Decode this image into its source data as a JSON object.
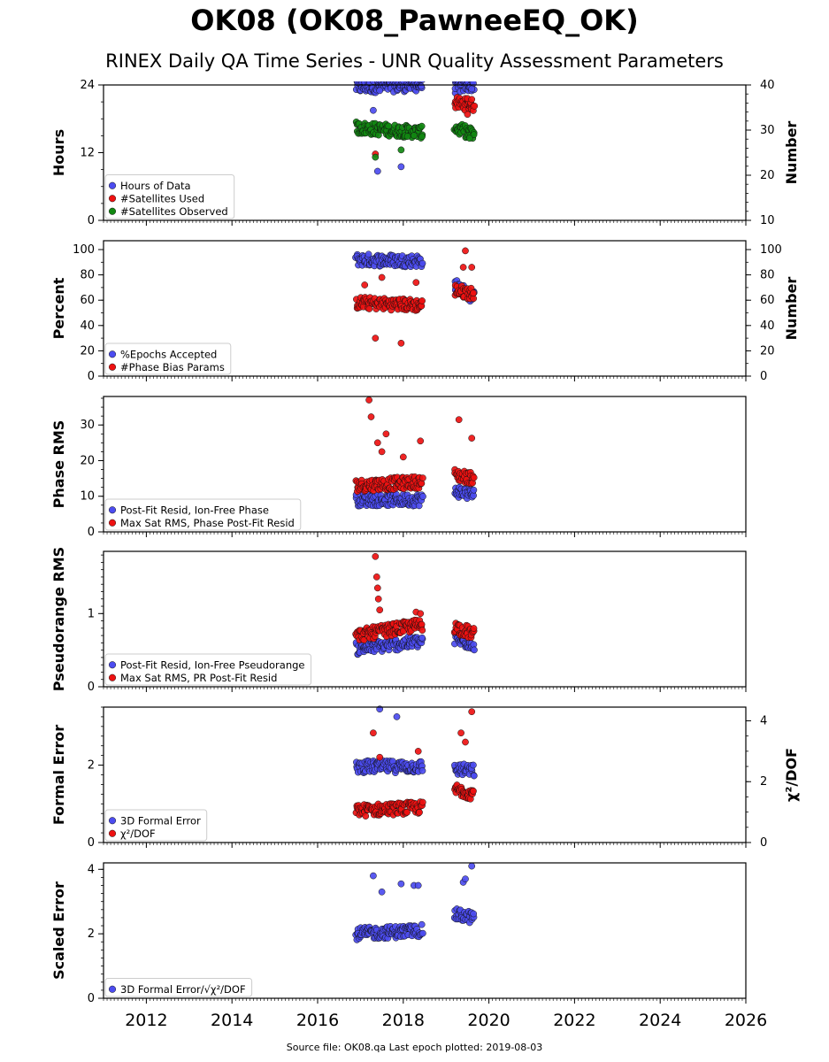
{
  "title": "OK08 (OK08_PawneeEQ_OK)",
  "subtitle": "RINEX Daily QA Time Series - UNR Quality Assessment Parameters",
  "source_note": "Source file: OK08.qa Last epoch plotted: 2019-08-03",
  "colors": {
    "blue": "#4c4cf0",
    "red": "#ee1111",
    "green": "#118811"
  },
  "chart_data": [
    {
      "type": "scatter",
      "ylabel": "Hours",
      "ylabel_right": "Number",
      "ylim": [
        0,
        24
      ],
      "yticks": [
        "0",
        "12",
        "24"
      ],
      "ylim_right": [
        10,
        40
      ],
      "yticks_right": [
        "10",
        "20",
        "30",
        "40"
      ],
      "legend_position": "lower-left",
      "series": [
        {
          "name": "Hours of Data",
          "color": "blue",
          "axis": "left",
          "clusters": [
            {
              "x": [
                2016.9,
                2018.45
              ],
              "y": [
                23.6,
                24.0
              ]
            },
            {
              "x": [
                2019.2,
                2019.65
              ],
              "y": [
                23.6,
                24.0
              ]
            }
          ],
          "points": [
            [
              2017.3,
              19.5
            ],
            [
              2017.45,
              23.0
            ],
            [
              2019.6,
              23.3
            ],
            [
              2017.4,
              8.7
            ],
            [
              2017.95,
              9.5
            ]
          ]
        },
        {
          "name": "#Satellites Used",
          "color": "red",
          "axis": "right",
          "clusters": [
            {
              "x": [
                2019.2,
                2019.65
              ],
              "y": [
                36.0,
                35.5
              ]
            }
          ],
          "points": [
            [
              2017.35,
              24.7
            ],
            [
              2019.5,
              33.5
            ],
            [
              2019.5,
              37.0
            ],
            [
              2019.6,
              36.8
            ]
          ]
        },
        {
          "name": "#Satellites Observed",
          "color": "green",
          "axis": "right",
          "clusters": [
            {
              "x": [
                2016.9,
                2018.45
              ],
              "y": [
                30.5,
                29.5
              ]
            },
            {
              "x": [
                2019.2,
                2019.65
              ],
              "y": [
                30.5,
                29.0
              ]
            }
          ],
          "points": [
            [
              2017.35,
              24.0
            ],
            [
              2017.95,
              25.6
            ],
            [
              2018.1,
              28.6
            ],
            [
              2018.25,
              28.8
            ],
            [
              2019.55,
              28.2
            ]
          ]
        }
      ]
    },
    {
      "type": "scatter",
      "ylabel": "Percent",
      "ylabel_right": "Number",
      "ylim": [
        0,
        107
      ],
      "yticks": [
        "0",
        "20",
        "40",
        "60",
        "80",
        "100"
      ],
      "ylim_right": [
        0,
        107
      ],
      "yticks_right": [
        "0",
        "20",
        "40",
        "60",
        "80",
        "100"
      ],
      "legend_position": "lower-left",
      "series": [
        {
          "name": "%Epochs Accepted",
          "color": "blue",
          "axis": "left",
          "clusters": [
            {
              "x": [
                2016.9,
                2018.45
              ],
              "y": [
                92,
                91
              ]
            },
            {
              "x": [
                2019.2,
                2019.65
              ],
              "y": [
                72,
                62
              ]
            }
          ],
          "points": []
        },
        {
          "name": "#Phase Bias Params",
          "color": "red",
          "axis": "right",
          "clusters": [
            {
              "x": [
                2016.9,
                2018.45
              ],
              "y": [
                58,
                56
              ]
            },
            {
              "x": [
                2019.2,
                2019.65
              ],
              "y": [
                68,
                65
              ]
            }
          ],
          "points": [
            [
              2017.35,
              30
            ],
            [
              2017.95,
              26
            ],
            [
              2019.45,
              99
            ],
            [
              2019.4,
              86
            ],
            [
              2019.6,
              86
            ],
            [
              2017.1,
              72
            ],
            [
              2018.3,
              74
            ],
            [
              2017.5,
              78
            ]
          ]
        }
      ]
    },
    {
      "type": "scatter",
      "ylabel": "Phase RMS",
      "ylim": [
        0,
        38
      ],
      "yticks": [
        "0",
        "10",
        "20",
        "30"
      ],
      "legend_position": "lower-left",
      "series": [
        {
          "name": "Post-Fit Resid, Ion-Free Phase",
          "color": "blue",
          "axis": "left",
          "clusters": [
            {
              "x": [
                2016.9,
                2018.45
              ],
              "y": [
                9.0,
                9.0
              ]
            },
            {
              "x": [
                2019.2,
                2019.65
              ],
              "y": [
                11.5,
                10.5
              ]
            }
          ],
          "points": []
        },
        {
          "name": "Max Sat RMS, Phase Post-Fit Resid",
          "color": "red",
          "axis": "left",
          "clusters": [
            {
              "x": [
                2016.9,
                2018.45
              ],
              "y": [
                13.0,
                14.0
              ]
            },
            {
              "x": [
                2019.2,
                2019.65
              ],
              "y": [
                16.0,
                15.0
              ]
            }
          ],
          "points": [
            [
              2017.2,
              37.0
            ],
            [
              2017.25,
              32.3
            ],
            [
              2019.3,
              31.5
            ],
            [
              2017.4,
              25.0
            ],
            [
              2017.6,
              27.5
            ],
            [
              2018.4,
              25.5
            ],
            [
              2019.6,
              26.3
            ],
            [
              2018.0,
              21.0
            ],
            [
              2017.5,
              22.5
            ]
          ]
        }
      ]
    },
    {
      "type": "scatter",
      "ylabel": "Pseudorange RMS",
      "ylim": [
        0,
        1.85
      ],
      "yticks": [
        "0",
        "1"
      ],
      "legend_position": "lower-left",
      "series": [
        {
          "name": "Post-Fit Resid, Ion-Free Pseudorange",
          "color": "blue",
          "axis": "left",
          "clusters": [
            {
              "x": [
                2016.9,
                2018.45
              ],
              "y": [
                0.52,
                0.62
              ]
            },
            {
              "x": [
                2019.2,
                2019.65
              ],
              "y": [
                0.65,
                0.58
              ]
            }
          ],
          "points": []
        },
        {
          "name": "Max Sat RMS, PR Post-Fit Resid",
          "color": "red",
          "axis": "left",
          "clusters": [
            {
              "x": [
                2016.9,
                2018.45
              ],
              "y": [
                0.7,
                0.85
              ]
            },
            {
              "x": [
                2019.2,
                2019.65
              ],
              "y": [
                0.82,
                0.72
              ]
            }
          ],
          "points": [
            [
              2017.35,
              1.78
            ],
            [
              2017.38,
              1.5
            ],
            [
              2017.4,
              1.35
            ],
            [
              2017.42,
              1.2
            ],
            [
              2017.45,
              1.05
            ],
            [
              2018.3,
              1.02
            ],
            [
              2018.4,
              1.0
            ]
          ]
        }
      ]
    },
    {
      "type": "scatter",
      "ylabel": "Formal Error",
      "ylabel_right": "χ²/DOF",
      "ylim": [
        0,
        3.5
      ],
      "yticks": [
        "0",
        "2"
      ],
      "ylim_right": [
        0,
        4.45
      ],
      "yticks_right": [
        "0",
        "2",
        "4"
      ],
      "legend_position": "lower-left",
      "series": [
        {
          "name": "3D Formal Error",
          "color": "blue",
          "axis": "left",
          "clusters": [
            {
              "x": [
                2016.9,
                2018.45
              ],
              "y": [
                1.96,
                1.96
              ]
            },
            {
              "x": [
                2019.2,
                2019.65
              ],
              "y": [
                1.9,
                1.85
              ]
            }
          ],
          "points": [
            [
              2017.45,
              3.45
            ],
            [
              2017.85,
              3.25
            ]
          ]
        },
        {
          "name": "χ²/DOF",
          "color": "red",
          "axis": "right",
          "clusters": [
            {
              "x": [
                2016.9,
                2018.45
              ],
              "y": [
                1.05,
                1.15
              ]
            },
            {
              "x": [
                2019.2,
                2019.65
              ],
              "y": [
                1.75,
                1.6
              ]
            }
          ],
          "points": [
            [
              2017.3,
              3.6
            ],
            [
              2019.35,
              3.6
            ],
            [
              2019.6,
              4.3
            ],
            [
              2017.45,
              2.8
            ],
            [
              2018.35,
              3.0
            ],
            [
              2019.45,
              3.3
            ]
          ]
        }
      ]
    },
    {
      "type": "scatter",
      "ylabel": "Scaled Error",
      "ylim": [
        0,
        4.2
      ],
      "yticks": [
        "0",
        "2",
        "4"
      ],
      "legend_position": "lower-left",
      "series": [
        {
          "name": "3D Formal Error/√χ²/DOF",
          "color": "blue",
          "axis": "left",
          "clusters": [
            {
              "x": [
                2016.9,
                2018.45
              ],
              "y": [
                2.0,
                2.1
              ]
            },
            {
              "x": [
                2019.2,
                2019.65
              ],
              "y": [
                2.6,
                2.5
              ]
            }
          ],
          "points": [
            [
              2017.3,
              3.8
            ],
            [
              2017.95,
              3.55
            ],
            [
              2018.25,
              3.5
            ],
            [
              2018.35,
              3.5
            ],
            [
              2019.4,
              3.6
            ],
            [
              2019.45,
              3.7
            ],
            [
              2019.6,
              4.1
            ],
            [
              2017.5,
              3.3
            ]
          ]
        }
      ]
    }
  ],
  "x_axis": {
    "xlim": [
      2011,
      2026
    ],
    "ticks": [
      "2012",
      "2014",
      "2016",
      "2018",
      "2020",
      "2022",
      "2024",
      "2026"
    ]
  }
}
